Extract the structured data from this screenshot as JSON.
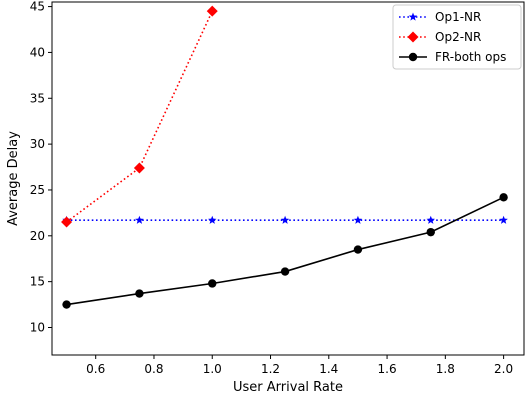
{
  "chart_data": {
    "type": "line",
    "title": "",
    "xlabel": "User Arrival Rate",
    "ylabel": "Average Delay",
    "xlim": [
      0.45,
      2.07
    ],
    "ylim": [
      7,
      45.5
    ],
    "xticks": [
      0.6,
      0.8,
      1.0,
      1.2,
      1.4,
      1.6,
      1.8,
      2.0
    ],
    "xtick_labels": [
      "0.6",
      "0.8",
      "1.0",
      "1.2",
      "1.4",
      "1.6",
      "1.8",
      "2.0"
    ],
    "yticks": [
      10,
      15,
      20,
      25,
      30,
      35,
      40,
      45
    ],
    "ytick_labels": [
      "10",
      "15",
      "20",
      "25",
      "30",
      "35",
      "40",
      "45"
    ],
    "grid": false,
    "legend_position": "top-right",
    "series": [
      {
        "name": "Op1-NR",
        "color": "#0000ff",
        "line_style": "dotted",
        "marker": "star",
        "x": [
          0.5,
          0.75,
          1.0,
          1.25,
          1.5,
          1.75,
          2.0
        ],
        "y": [
          21.7,
          21.7,
          21.7,
          21.7,
          21.7,
          21.7,
          21.7
        ]
      },
      {
        "name": "Op2-NR",
        "color": "#ff0000",
        "line_style": "dotted",
        "marker": "diamond",
        "x": [
          0.5,
          0.75,
          1.0
        ],
        "y": [
          21.5,
          27.4,
          44.5
        ]
      },
      {
        "name": "FR-both ops",
        "color": "#000000",
        "line_style": "solid",
        "marker": "circle",
        "x": [
          0.5,
          0.75,
          1.0,
          1.25,
          1.5,
          1.75,
          2.0
        ],
        "y": [
          12.5,
          13.7,
          14.8,
          16.1,
          18.5,
          20.4,
          24.2
        ]
      }
    ]
  }
}
